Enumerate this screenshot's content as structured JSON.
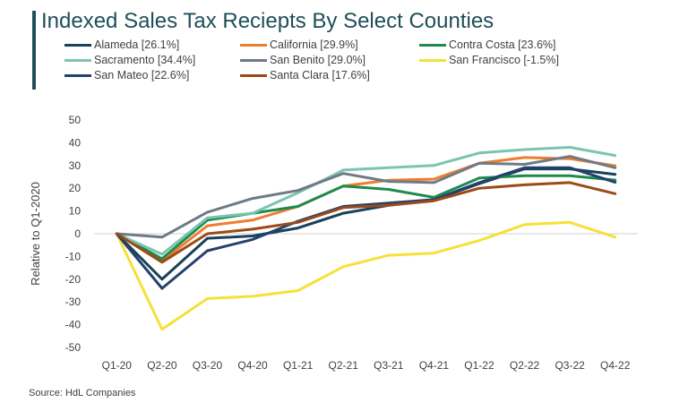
{
  "title": "Indexed Sales Tax Reciepts By Select Counties",
  "source": "Source: HdL Companies",
  "chart_data": {
    "type": "line",
    "title": "Indexed Sales Tax Reciepts By Select Counties",
    "xlabel": "",
    "ylabel": "Relative to Q1-2020",
    "ylim": [
      -50,
      50
    ],
    "yticks": [
      50,
      40,
      30,
      20,
      10,
      0,
      -10,
      -20,
      -30,
      -40,
      -50
    ],
    "grid": false,
    "legend_position": "top",
    "categories": [
      "Q1-20",
      "Q2-20",
      "Q3-20",
      "Q4-20",
      "Q1-21",
      "Q2-21",
      "Q3-21",
      "Q4-21",
      "Q1-22",
      "Q2-22",
      "Q3-22",
      "Q4-22"
    ],
    "series": [
      {
        "name": "Alameda [26.1%]",
        "color": "#17425a",
        "values": [
          0,
          -20,
          -2,
          -1,
          2.5,
          9,
          12.5,
          15,
          22,
          28.5,
          28.5,
          26.1
        ]
      },
      {
        "name": "California [29.9%]",
        "color": "#ed7d31",
        "values": [
          0,
          -12,
          3.5,
          6,
          12,
          21,
          23.5,
          24,
          31,
          33.5,
          33,
          29.9
        ]
      },
      {
        "name": "Contra Costa [23.6%]",
        "color": "#1e8a4c",
        "values": [
          0,
          -11,
          6,
          9,
          12,
          21,
          19.5,
          16,
          24.5,
          25.5,
          25.5,
          23.6
        ]
      },
      {
        "name": "Sacramento [34.4%]",
        "color": "#7cc4b0",
        "values": [
          0,
          -9,
          7,
          9,
          18,
          28,
          29,
          30,
          35.5,
          37,
          38,
          34.4
        ]
      },
      {
        "name": "San Benito [29.0%]",
        "color": "#6e7a85",
        "values": [
          0,
          -1.5,
          9.5,
          15.5,
          19,
          26.5,
          23,
          22.5,
          31,
          30.5,
          34,
          29.0
        ]
      },
      {
        "name": "San Francisco [-1.5%]",
        "color": "#f5e13a",
        "values": [
          0,
          -42,
          -28.5,
          -27.5,
          -25,
          -14.5,
          -9.5,
          -8.5,
          -3,
          4,
          5,
          -1.5
        ]
      },
      {
        "name": "San Mateo [22.6%]",
        "color": "#24416e",
        "values": [
          0,
          -24,
          -7.5,
          -2.5,
          5.5,
          12,
          13.5,
          15,
          22.5,
          29,
          29,
          22.6
        ]
      },
      {
        "name": "Santa Clara [17.6%]",
        "color": "#9c4a16",
        "values": [
          0,
          -12.5,
          0,
          2,
          5,
          11.5,
          12.5,
          14.5,
          20,
          21.5,
          22.5,
          17.6
        ]
      }
    ]
  }
}
